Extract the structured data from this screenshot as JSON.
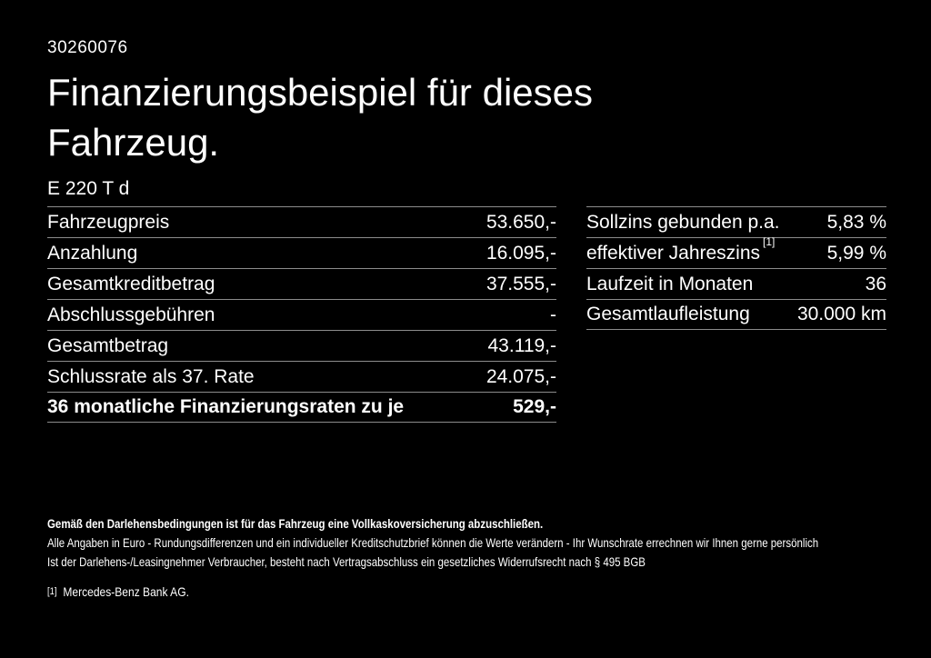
{
  "header": {
    "id_number": "30260076",
    "title_line1": "Finanzierungsbeispiel für dieses",
    "title_line2": "Fahrzeug.",
    "model": "E 220 T d"
  },
  "finance_table": {
    "rows": [
      {
        "label": "Fahrzeugpreis",
        "value": "53.650,-"
      },
      {
        "label": "Anzahlung",
        "value": "16.095,-"
      },
      {
        "label": "Gesamtkreditbetrag",
        "value": "37.555,-"
      },
      {
        "label": "Abschlussgebühren",
        "value": "-"
      },
      {
        "label": "Gesamtbetrag",
        "value": "43.119,-"
      },
      {
        "label": "Schlussrate als 37. Rate",
        "value": "24.075,-"
      },
      {
        "label": "36 monatliche Finanzierungsraten zu je",
        "value": "529,-"
      }
    ]
  },
  "conditions_table": {
    "rows": [
      {
        "label": "Sollzins gebunden p.a.",
        "sup": "",
        "value": "5,83 %"
      },
      {
        "label": "effektiver Jahreszins",
        "sup": "[1]",
        "value": "5,99 %"
      },
      {
        "label": "Laufzeit in Monaten",
        "sup": "",
        "value": "36"
      },
      {
        "label": "Gesamtlaufleistung",
        "sup": "",
        "value": "30.000 km"
      }
    ]
  },
  "footer": {
    "line_bold": "Gemäß den Darlehensbedingungen ist für das Fahrzeug eine Vollkaskoversicherung abzuschließen.",
    "line2": "Alle Angaben in Euro - Rundungsdifferenzen und ein individueller Kreditschutzbrief können die Werte verändern - Ihr Wunschrate errechnen wir Ihnen gerne persönlich",
    "line3": "Ist der Darlehens-/Leasingnehmer Verbraucher, besteht nach Vertragsabschluss ein gesetzliches Widerrufsrecht nach § 495 BGB",
    "footnote_marker": "[1]",
    "footnote_text": "Mercedes-Benz Bank AG."
  },
  "colors": {
    "background": "#000000",
    "text": "#ffffff",
    "divider": "#8c8c8c"
  }
}
